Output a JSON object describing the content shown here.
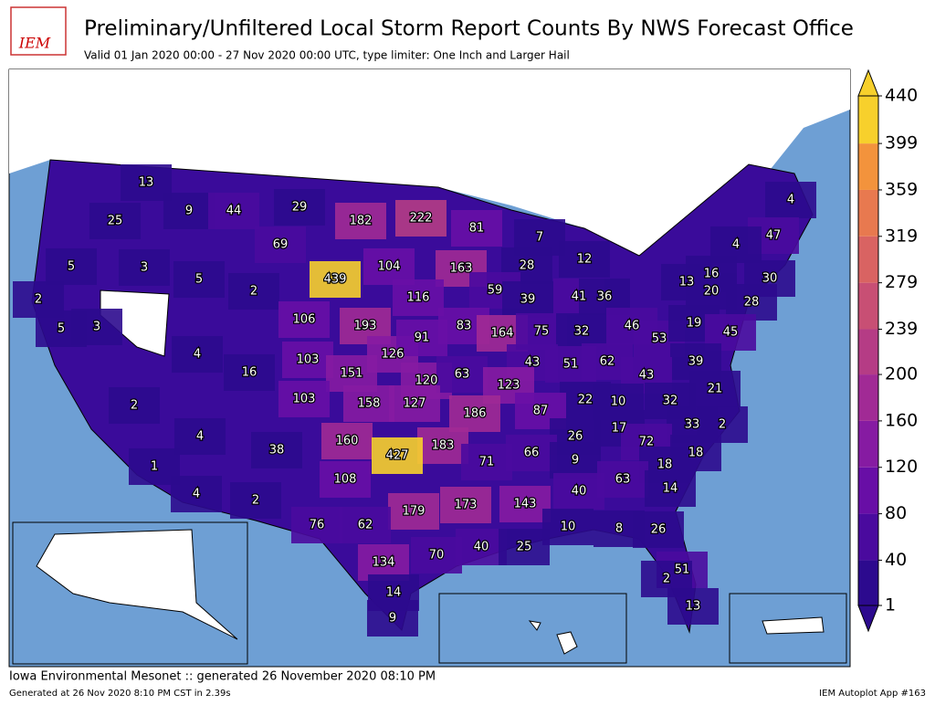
{
  "chart_data": {
    "type": "choropleth",
    "title": "Preliminary/Unfiltered Local Storm Report Counts By NWS Forecast Office",
    "subtitle": "Valid 01 Jan 2020 00:00 - 27 Nov 2020 00:00 UTC, type limiter: One Inch and Larger Hail",
    "logo_text": "IEM",
    "footer_left": "Iowa Environmental Mesonet :: generated 26 November 2020 08:10 PM",
    "footer_small": "Generated at 26 Nov 2020 8:10 PM CST in 2.39s",
    "footer_right": "IEM Autoplot App #163",
    "values": [
      13,
      25,
      9,
      44,
      29,
      182,
      222,
      81,
      7,
      4,
      47,
      4,
      69,
      5,
      3,
      5,
      2,
      439,
      104,
      163,
      28,
      12,
      16,
      30,
      13,
      20,
      28,
      2,
      5,
      3,
      116,
      59,
      39,
      41,
      36,
      106,
      193,
      83,
      164,
      75,
      32,
      46,
      53,
      19,
      45,
      4,
      103,
      126,
      91,
      43,
      51,
      62,
      39,
      43,
      16,
      151,
      120,
      63,
      123,
      21,
      103,
      158,
      127,
      22,
      10,
      32,
      2,
      87,
      186,
      33,
      2,
      160,
      17,
      26,
      183,
      4,
      38,
      72,
      427,
      18,
      66,
      71,
      9,
      18,
      1,
      108,
      63,
      14,
      40,
      179,
      173,
      143,
      4,
      2,
      76,
      62,
      10,
      8,
      26,
      40,
      25,
      70,
      134,
      51,
      2,
      14,
      13,
      9
    ],
    "colorbar": {
      "ticks": [
        1,
        40,
        80,
        120,
        160,
        200,
        239,
        279,
        319,
        359,
        399,
        440
      ],
      "colors": [
        "#2c0a8e",
        "#4a0a9e",
        "#680ea6",
        "#861ba2",
        "#a12a95",
        "#b53c85",
        "#c84f74",
        "#d96362",
        "#e8794f",
        "#f3933c",
        "#f7d02c"
      ]
    }
  }
}
